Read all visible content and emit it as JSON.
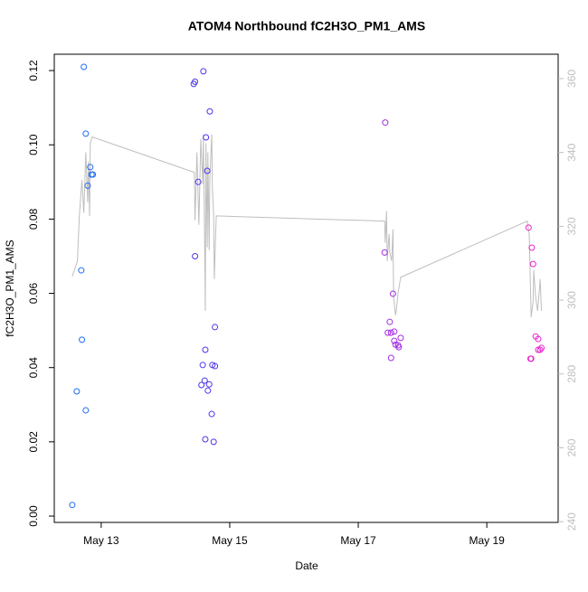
{
  "chart_data": {
    "type": "scatter",
    "title": "ATOM4 Northbound fC2H3O_PM1_AMS",
    "x_label": "Date",
    "y_label": "fC2H3O_PM1_AMS",
    "xlim": [
      12.27,
      20.11
    ],
    "xticks": [
      {
        "value": 13,
        "label": "May 13"
      },
      {
        "value": 15,
        "label": "May 15"
      },
      {
        "value": 17,
        "label": "May 17"
      },
      {
        "value": 19,
        "label": "May 19"
      }
    ],
    "ylim": [
      -0.0017,
      0.1244
    ],
    "yticks": [
      {
        "value": 0,
        "label": "0.00"
      },
      0.02,
      0.04,
      0.06,
      0.08,
      {
        "value": 0.1,
        "label": "0.10"
      },
      0.12
    ],
    "y2lim": [
      239.8,
      366.6
    ],
    "y2ticks": [
      240,
      260,
      280,
      300,
      320,
      340,
      360
    ],
    "y2_color": "#bebebe",
    "series": [
      {
        "x": [
          12.55,
          12.62,
          12.69,
          12.7,
          12.73,
          12.76,
          12.76,
          12.79,
          12.83,
          12.85,
          12.87,
          14.44,
          14.46,
          14.46,
          14.51,
          14.59,
          14.56,
          14.58,
          14.61,
          14.62,
          14.62,
          14.63,
          14.65,
          14.66,
          14.68,
          14.69,
          14.72,
          14.73,
          14.75,
          14.77,
          14.77,
          17.42,
          17.41,
          17.46,
          17.49,
          17.51,
          17.51,
          17.54,
          17.56,
          17.56,
          17.58,
          17.62,
          17.63,
          17.66,
          19.65,
          19.68,
          19.69,
          19.7,
          19.72,
          19.76,
          19.8,
          19.8,
          19.83,
          19.85
        ],
        "values": [
          0.003,
          0.0336,
          0.0662,
          0.0475,
          0.121,
          0.103,
          0.0285,
          0.089,
          0.094,
          0.092,
          0.092,
          0.1164,
          0.117,
          0.07,
          0.09,
          0.1198,
          0.0353,
          0.0407,
          0.0365,
          0.0448,
          0.0207,
          0.102,
          0.093,
          0.0338,
          0.0355,
          0.109,
          0.0275,
          0.0407,
          0.02,
          0.0509,
          0.0404,
          0.106,
          0.071,
          0.0494,
          0.0523,
          0.0494,
          0.0426,
          0.0599,
          0.0497,
          0.0472,
          0.0462,
          0.046,
          0.0455,
          0.048,
          0.0777,
          0.0424,
          0.0424,
          0.0723,
          0.0679,
          0.0484,
          0.0477,
          0.0448,
          0.0448,
          0.0453
        ],
        "colors": [
          "#1f6cf5",
          "#1f6cf5",
          "#1f6cf5",
          "#1f6cf5",
          "#1f6cf5",
          "#1f6cf5",
          "#1f6cf5",
          "#1f6cf5",
          "#1f6cf5",
          "#1f6cf5",
          "#1f6cf5",
          "#4b35ec",
          "#4b35ec",
          "#4b35ec",
          "#4b35ec",
          "#4b35ec",
          "#4b35ec",
          "#4b35ec",
          "#4b35ec",
          "#4b35ec",
          "#4b35ec",
          "#4b35ec",
          "#4b35ec",
          "#4b35ec",
          "#4b35ec",
          "#4b35ec",
          "#4b35ec",
          "#4b35ec",
          "#4b35ec",
          "#4b35ec",
          "#4b35ec",
          "#a22ee0",
          "#a22ee0",
          "#a22ee0",
          "#a22ee0",
          "#a22ee0",
          "#a22ee0",
          "#a22ee0",
          "#a22ee0",
          "#a22ee0",
          "#a22ee0",
          "#a22ee0",
          "#a22ee0",
          "#a22ee0",
          "#e825cf",
          "#e825cf",
          "#e825cf",
          "#e825cf",
          "#e825cf",
          "#e825cf",
          "#e825cf",
          "#e825cf",
          "#e825cf",
          "#e825cf"
        ]
      },
      {
        "axis": "y2",
        "color": "#bebebe",
        "x": [
          12.55,
          12.63,
          12.66,
          12.7,
          12.73,
          12.76,
          12.79,
          12.8,
          12.82,
          12.83,
          12.86,
          14.45,
          14.46,
          14.49,
          14.52,
          14.55,
          14.58,
          14.59,
          14.61,
          14.62,
          14.63,
          14.65,
          14.66,
          14.68,
          14.69,
          14.72,
          14.73,
          14.75,
          14.76,
          14.79,
          17.41,
          17.42,
          17.44,
          17.45,
          17.48,
          17.49,
          17.52,
          17.54,
          17.55,
          17.58,
          17.59,
          17.62,
          17.66,
          19.63,
          19.66,
          19.69,
          19.72,
          19.73,
          19.76,
          19.79,
          19.82,
          19.83,
          19.85
        ],
        "values": [
          306.4,
          310.6,
          322.8,
          332.6,
          323.6,
          340.0,
          326.5,
          337.5,
          322.8,
          342.5,
          344.2,
          334.6,
          321.6,
          340.0,
          320.4,
          343.7,
          331.4,
          344.9,
          315.5,
          297.1,
          342.5,
          314.3,
          340.0,
          313.5,
          332.6,
          344.9,
          330.2,
          322.8,
          305.7,
          322.8,
          321.4,
          315.5,
          324.1,
          310.6,
          317.9,
          313.0,
          310.6,
          319.2,
          300.8,
          295.9,
          297.1,
          302.0,
          306.2,
          321.4,
          317.9,
          295.4,
          299.6,
          308.1,
          300.8,
          297.1,
          303.2,
          305.7,
          297.1
        ]
      }
    ]
  }
}
